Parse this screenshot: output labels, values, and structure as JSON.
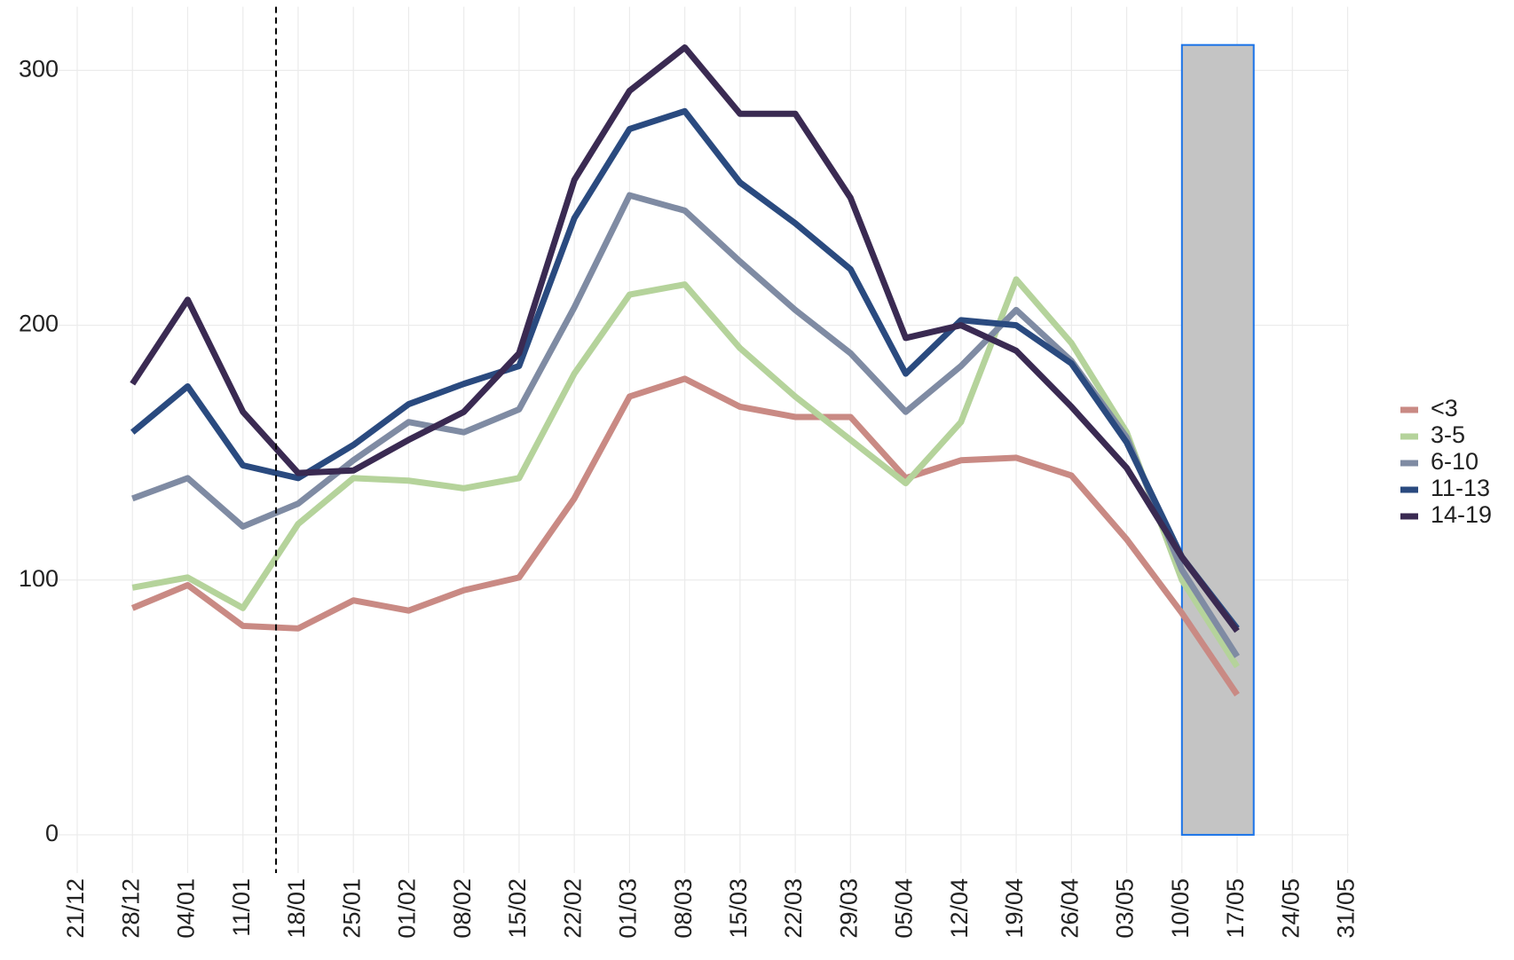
{
  "chart_data": {
    "type": "line",
    "categories": [
      "21/12",
      "28/12",
      "04/01",
      "11/01",
      "18/01",
      "25/01",
      "01/02",
      "08/02",
      "15/02",
      "22/02",
      "01/03",
      "08/03",
      "15/03",
      "22/03",
      "29/03",
      "05/04",
      "12/04",
      "19/04",
      "26/04",
      "03/05",
      "10/05",
      "17/05",
      "24/05",
      "31/05"
    ],
    "series": [
      {
        "name": "<3",
        "color": "#c98a84",
        "values": [
          null,
          89,
          98,
          82,
          81,
          92,
          88,
          96,
          101,
          132,
          172,
          179,
          168,
          164,
          164,
          140,
          147,
          148,
          141,
          116,
          87,
          55,
          null,
          null
        ]
      },
      {
        "name": "3-5",
        "color": "#b5d39b",
        "values": [
          null,
          97,
          101,
          89,
          122,
          140,
          139,
          136,
          140,
          181,
          212,
          216,
          191,
          172,
          155,
          138,
          162,
          218,
          193,
          158,
          100,
          66,
          null,
          null
        ]
      },
      {
        "name": "6-10",
        "color": "#7f8ba3",
        "values": [
          null,
          132,
          140,
          121,
          130,
          147,
          162,
          158,
          167,
          207,
          251,
          245,
          225,
          206,
          189,
          166,
          184,
          206,
          186,
          156,
          104,
          70,
          null,
          null
        ]
      },
      {
        "name": "11-13",
        "color": "#2a4a7f",
        "values": [
          null,
          158,
          176,
          145,
          140,
          153,
          169,
          177,
          184,
          242,
          277,
          284,
          256,
          240,
          222,
          181,
          202,
          200,
          185,
          154,
          109,
          81,
          null,
          null
        ]
      },
      {
        "name": "14-19",
        "color": "#3a2a52",
        "values": [
          null,
          177,
          210,
          166,
          142,
          143,
          155,
          166,
          189,
          257,
          292,
          309,
          283,
          283,
          250,
          195,
          200,
          190,
          168,
          144,
          109,
          80,
          null,
          null
        ]
      }
    ],
    "ylim": [
      -15,
      325
    ],
    "yticks": [
      0,
      100,
      200,
      300
    ],
    "grid": true,
    "reference_line": {
      "position": 3.6,
      "style": "dashed"
    },
    "highlight": {
      "x_from": 20,
      "x_to": 21.3,
      "y_from": 0,
      "y_to": 310,
      "fill": "#c4c4c4",
      "stroke": "#1a73e8"
    },
    "legend": "right"
  }
}
